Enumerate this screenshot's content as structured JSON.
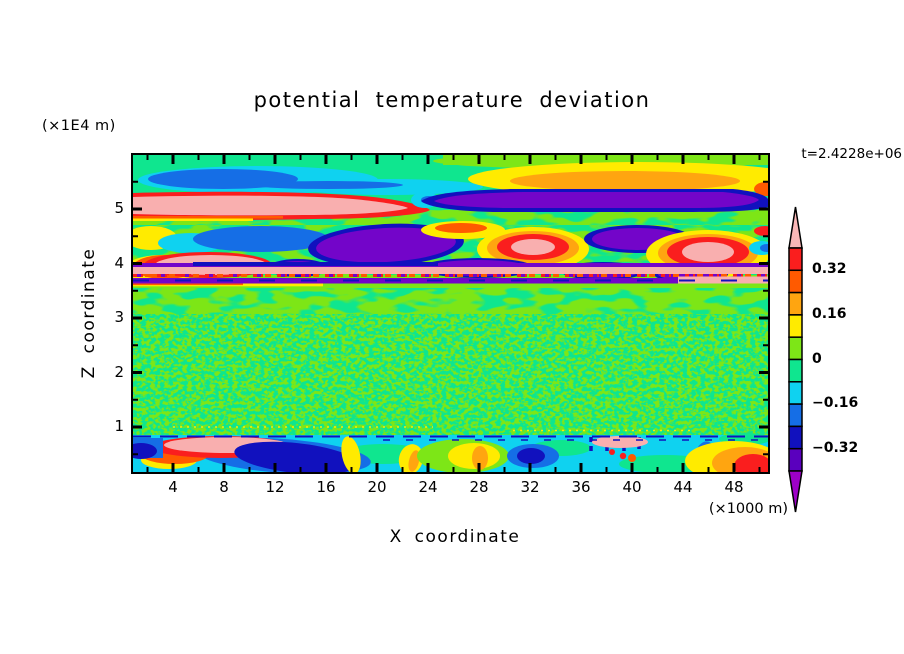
{
  "title": "potential temperature deviation",
  "time_label": "t=2.4228e+06",
  "axes": {
    "y": {
      "title": "Z coordinate",
      "unit": "(×1E4 m)",
      "major_ticks": [
        5,
        4,
        3,
        2,
        1
      ]
    },
    "x": {
      "title": "X coordinate",
      "unit": "(×1000 m)",
      "major_ticks": [
        4,
        8,
        12,
        16,
        20,
        24,
        28,
        32,
        36,
        40,
        44,
        48
      ]
    }
  },
  "colorbar": {
    "labels": [
      "0.32",
      "0.16",
      "0",
      "−0.16",
      "−0.32"
    ],
    "segment_colors_top_to_bottom": [
      "#FA1E1E",
      "#FF5A00",
      "#FFA510",
      "#FFEB00",
      "#7DE617",
      "#0FE68F",
      "#0FD2F0",
      "#156EE6",
      "#1111BE",
      "#5A00BE"
    ],
    "arrow_top_color": "#F9B7B7",
    "arrow_bottom_color": "#9E00C8"
  },
  "chart_data": {
    "type": "heatmap",
    "title": "potential temperature deviation",
    "xlabel": "X coordinate",
    "x_unit": "×1000 m",
    "ylabel": "Z coordinate",
    "y_unit": "×1E4 m",
    "xlim": [
      1,
      50.7
    ],
    "ylim": [
      0.1,
      6.0
    ],
    "x_major_ticks": [
      4,
      8,
      12,
      16,
      20,
      24,
      28,
      32,
      36,
      40,
      44,
      48
    ],
    "x_minor_tick_interval": 2,
    "y_major_ticks": [
      1,
      2,
      3,
      4,
      5
    ],
    "y_minor_tick_interval": 0.5,
    "time": "t=2.4228e+06",
    "grid": false,
    "legend_position": "right",
    "contour_levels": [
      -0.4,
      -0.32,
      -0.24,
      -0.16,
      -0.08,
      0,
      0.08,
      0.16,
      0.24,
      0.32,
      0.4
    ],
    "colorbar_labeled_levels": [
      0.32,
      0.16,
      0,
      -0.16,
      -0.32
    ],
    "palette_low_to_high": [
      {
        "range": "< -0.4",
        "color": "#9E00C8"
      },
      {
        "range": "-0.4 to -0.32",
        "color": "#5A00BE"
      },
      {
        "range": "-0.32 to -0.24",
        "color": "#1111BE"
      },
      {
        "range": "-0.24 to -0.16",
        "color": "#156EE6"
      },
      {
        "range": "-0.16 to -0.08",
        "color": "#0FD2F0"
      },
      {
        "range": "-0.08 to 0",
        "color": "#0FE68F"
      },
      {
        "range": "0 to 0.08",
        "color": "#7DE617"
      },
      {
        "range": "0.08 to 0.16",
        "color": "#FFEB00"
      },
      {
        "range": "0.16 to 0.24",
        "color": "#FFA510"
      },
      {
        "range": "0.24 to 0.32",
        "color": "#FF5A00"
      },
      {
        "range": "0.32 to 0.4",
        "color": "#FA1E1E"
      },
      {
        "range": "> 0.4",
        "color": "#F9B7B7"
      }
    ],
    "features": [
      "near-zero (±0.08) green field fills most of the domain between z≈1 and z≈3.5 with fine speckle noise",
      "cold pool (cyan/blue, −0.24…−0.08) around x≈2–22, z≈5.3–5.7",
      "warm pool (yellow/orange, 0.08…0.24) around x≈28–50, z≈5.3–5.8",
      "strong warm band (>0.4, pink rimmed red) near z≈5.1 for x<23",
      "strong cold band (<−0.32, purple rimmed navy) near z≈5.0 for x≈24–50",
      "alternating warm cores (pink>0.4 inside red/orange rings) and cold cores (purple rimmed navy) between z≈3.9 and 4.6",
      "thin layered warm/cold stripes (pink/purple/red) near z≈3.6–3.9 across the full width",
      "turbulent boundary layer below z≈0.8: cyan/blue/navy cold pools with yellow/orange/red warm plumes and small pink maxima"
    ]
  }
}
